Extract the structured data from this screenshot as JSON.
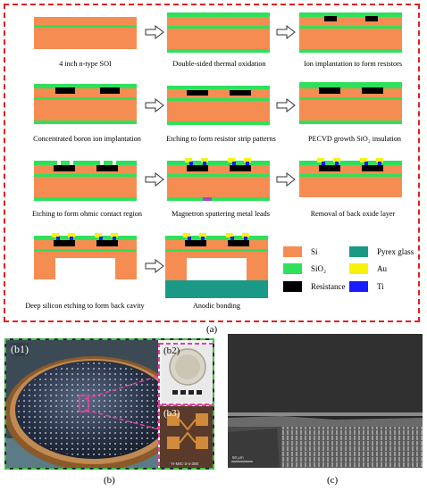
{
  "panel_a": {
    "label": "(a)",
    "steps": [
      {
        "caption": "4 inch n-type SOI"
      },
      {
        "caption": "Double-sided thermal oxidation"
      },
      {
        "caption": "Ion implantation to form resistors"
      },
      {
        "caption": "Concentrated boron ion implantation"
      },
      {
        "caption": "Etching to form resistor strip patterns"
      },
      {
        "caption": "PECVD growth SiO₂ insulation"
      },
      {
        "caption": "Etching to form ohmic contact region"
      },
      {
        "caption": "Magnetron sputtering metal leads"
      },
      {
        "caption": "Removal of back oxide layer"
      },
      {
        "caption": "Deep silicon etching to form back cavity"
      },
      {
        "caption": "Anodic bonding"
      }
    ],
    "legend": [
      {
        "name": "Si",
        "color": "#f58d52"
      },
      {
        "name": "Pyrex glass",
        "color": "#1a9a86"
      },
      {
        "name": "SiO₂",
        "color": "#2fe05a"
      },
      {
        "name": "Au",
        "color": "#f7f20c"
      },
      {
        "name": "Resistance",
        "color": "#000000"
      },
      {
        "name": "Ti",
        "color": "#1a1aff"
      }
    ]
  },
  "panel_b": {
    "label": "(b)",
    "sub_b1": "(b1)",
    "sub_b2": "(b2)",
    "sub_b3": "(b3)",
    "chip_text": "YI-MIC-3-4-300"
  },
  "panel_c": {
    "label": "(c)",
    "scale_text": "50 μm"
  },
  "colors": {
    "si": "#f58d52",
    "sio2": "#2fe05a",
    "resist": "#000000",
    "au": "#f7f20c",
    "ti": "#1a1aff",
    "pyrex": "#1a9a86",
    "frame_a": "#e02020",
    "frame_b": "#3cc13c"
  }
}
